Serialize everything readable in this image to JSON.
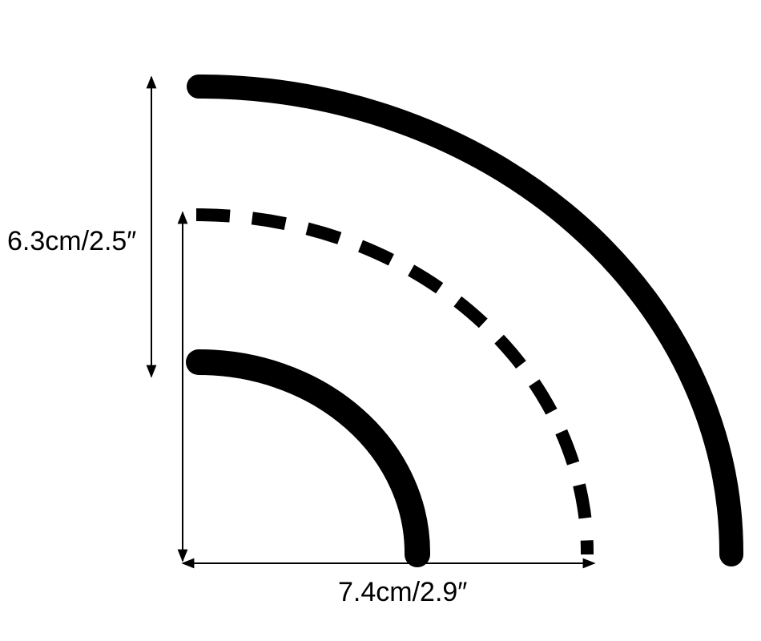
{
  "labels": {
    "height": "6.3cm/2.5″",
    "width": "7.4cm/2.9″"
  },
  "colors": {
    "stroke": "#000000",
    "background": "#ffffff"
  }
}
